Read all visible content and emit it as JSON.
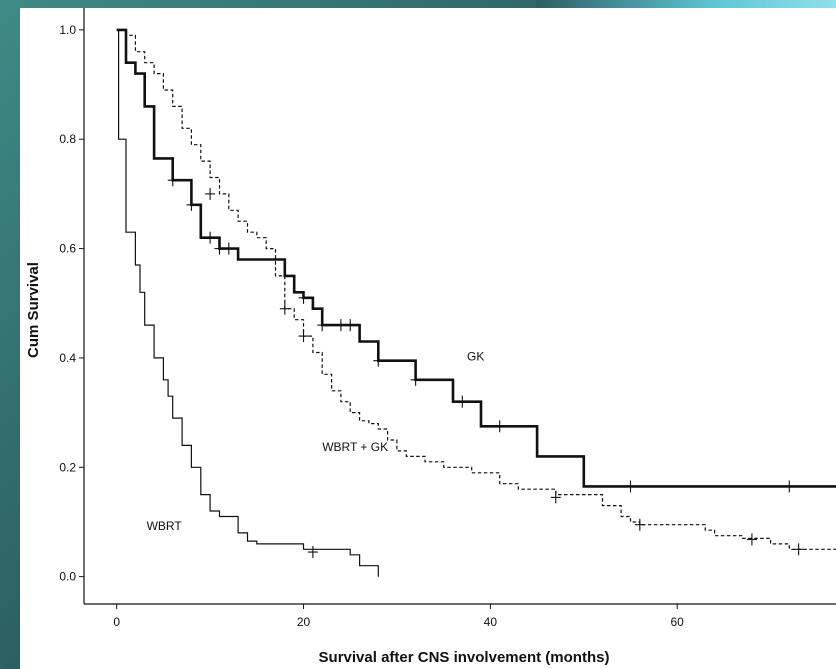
{
  "chart_data": {
    "type": "line",
    "subtype": "kaplan-meier",
    "title": "",
    "xlabel": "Survival after CNS involvement (months)",
    "ylabel": "Cum Survival",
    "xlim": [
      -3.5,
      77
    ],
    "ylim": [
      -0.05,
      1.04
    ],
    "xticks": [
      0,
      20,
      40,
      60
    ],
    "yticks": [
      0.0,
      0.2,
      0.4,
      0.6,
      0.8,
      1.0
    ],
    "ytick_labels": [
      "0.0",
      "0.2",
      "0.4",
      "0.6",
      "0.8",
      "1.0"
    ],
    "series": [
      {
        "name": "GK",
        "style": "solid-bold",
        "steps": [
          [
            0,
            1.0
          ],
          [
            1,
            0.94
          ],
          [
            2,
            0.92
          ],
          [
            3,
            0.86
          ],
          [
            4,
            0.765
          ],
          [
            6,
            0.725
          ],
          [
            8,
            0.68
          ],
          [
            9,
            0.62
          ],
          [
            11,
            0.6
          ],
          [
            13,
            0.58
          ],
          [
            16,
            0.58
          ],
          [
            18,
            0.55
          ],
          [
            19,
            0.52
          ],
          [
            20,
            0.51
          ],
          [
            21,
            0.49
          ],
          [
            22,
            0.46
          ],
          [
            24,
            0.46
          ],
          [
            25,
            0.46
          ],
          [
            26,
            0.43
          ],
          [
            28,
            0.395
          ],
          [
            32,
            0.36
          ],
          [
            36,
            0.32
          ],
          [
            39,
            0.275
          ],
          [
            45,
            0.22
          ],
          [
            50,
            0.165
          ],
          [
            77,
            0.165
          ]
        ],
        "censored": [
          [
            6,
            0.725
          ],
          [
            8,
            0.68
          ],
          [
            10,
            0.62
          ],
          [
            11,
            0.6
          ],
          [
            12,
            0.6
          ],
          [
            20,
            0.51
          ],
          [
            22,
            0.46
          ],
          [
            24,
            0.46
          ],
          [
            25,
            0.46
          ],
          [
            28,
            0.395
          ],
          [
            32,
            0.36
          ],
          [
            37,
            0.32
          ],
          [
            41,
            0.275
          ],
          [
            55,
            0.165
          ],
          [
            72,
            0.165
          ]
        ]
      },
      {
        "name": "WBRT + GK",
        "style": "dashed",
        "steps": [
          [
            0,
            1.0
          ],
          [
            1,
            0.99
          ],
          [
            2,
            0.96
          ],
          [
            3,
            0.94
          ],
          [
            4,
            0.92
          ],
          [
            5,
            0.89
          ],
          [
            6,
            0.86
          ],
          [
            7,
            0.82
          ],
          [
            8,
            0.79
          ],
          [
            9,
            0.76
          ],
          [
            10,
            0.73
          ],
          [
            11,
            0.7
          ],
          [
            12,
            0.67
          ],
          [
            13,
            0.65
          ],
          [
            14,
            0.63
          ],
          [
            15,
            0.62
          ],
          [
            16,
            0.6
          ],
          [
            17,
            0.55
          ],
          [
            18,
            0.49
          ],
          [
            19,
            0.47
          ],
          [
            20,
            0.44
          ],
          [
            21,
            0.41
          ],
          [
            22,
            0.37
          ],
          [
            23,
            0.34
          ],
          [
            24,
            0.32
          ],
          [
            25,
            0.3
          ],
          [
            26,
            0.285
          ],
          [
            27,
            0.28
          ],
          [
            28,
            0.27
          ],
          [
            29,
            0.25
          ],
          [
            30,
            0.23
          ],
          [
            31,
            0.22
          ],
          [
            33,
            0.21
          ],
          [
            35,
            0.2
          ],
          [
            38,
            0.19
          ],
          [
            41,
            0.17
          ],
          [
            43,
            0.16
          ],
          [
            47,
            0.15
          ],
          [
            52,
            0.13
          ],
          [
            54,
            0.11
          ],
          [
            55,
            0.1
          ],
          [
            56,
            0.095
          ],
          [
            63,
            0.085
          ],
          [
            64,
            0.075
          ],
          [
            67,
            0.07
          ],
          [
            70,
            0.06
          ],
          [
            72,
            0.05
          ],
          [
            77,
            0.05
          ]
        ],
        "censored": [
          [
            10,
            0.7
          ],
          [
            18,
            0.49
          ],
          [
            20,
            0.44
          ],
          [
            47,
            0.145
          ],
          [
            56,
            0.095
          ],
          [
            68,
            0.068
          ],
          [
            73,
            0.05
          ]
        ]
      },
      {
        "name": "WBRT",
        "style": "solid-thin",
        "steps": [
          [
            0,
            1.0
          ],
          [
            0.2,
            0.8
          ],
          [
            1,
            0.63
          ],
          [
            2,
            0.57
          ],
          [
            2.5,
            0.52
          ],
          [
            3,
            0.46
          ],
          [
            4,
            0.4
          ],
          [
            5,
            0.36
          ],
          [
            5.5,
            0.33
          ],
          [
            6,
            0.29
          ],
          [
            7,
            0.24
          ],
          [
            8,
            0.2
          ],
          [
            9,
            0.15
          ],
          [
            10,
            0.12
          ],
          [
            11,
            0.11
          ],
          [
            13,
            0.08
          ],
          [
            14,
            0.065
          ],
          [
            15,
            0.06
          ],
          [
            20,
            0.05
          ],
          [
            21,
            0.05
          ],
          [
            25,
            0.04
          ],
          [
            26,
            0.02
          ],
          [
            28,
            0.0
          ]
        ],
        "end_x": 28,
        "censored": [
          [
            21,
            0.045
          ]
        ]
      }
    ],
    "annotations": [
      {
        "text": "GK",
        "x": 37.5,
        "y": 0.395
      },
      {
        "text": "WBRT + GK",
        "x": 22,
        "y": 0.23
      },
      {
        "text": "WBRT",
        "x": 3.2,
        "y": 0.085
      }
    ]
  }
}
